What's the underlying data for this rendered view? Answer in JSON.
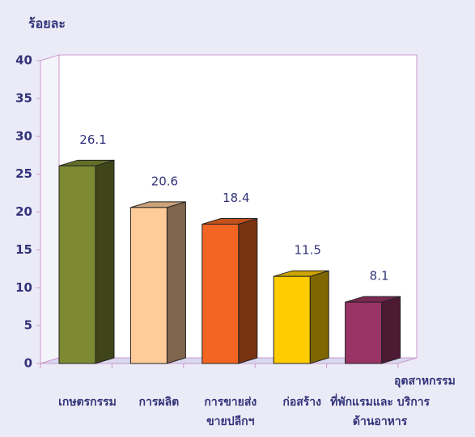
{
  "chart_data": {
    "type": "bar3d",
    "y_label": "ร้อยละ",
    "categories": [
      "เกษตรกรรม",
      "การผลิต",
      "การขายส่ง ขายปลีกฯ",
      "ก่อสร้าง",
      "ที่พักแรมและ บริการด้านอาหาร"
    ],
    "values": [
      26.1,
      20.6,
      18.4,
      11.5,
      8.1
    ],
    "colors": [
      "#7d8a32",
      "#ffcc99",
      "#f26522",
      "#ffcc00",
      "#993366"
    ],
    "annotation": "อุตสาหกรรม",
    "ylim": [
      0,
      40
    ],
    "yticks": [
      0,
      5,
      10,
      15,
      20,
      25,
      30,
      35,
      40
    ]
  }
}
